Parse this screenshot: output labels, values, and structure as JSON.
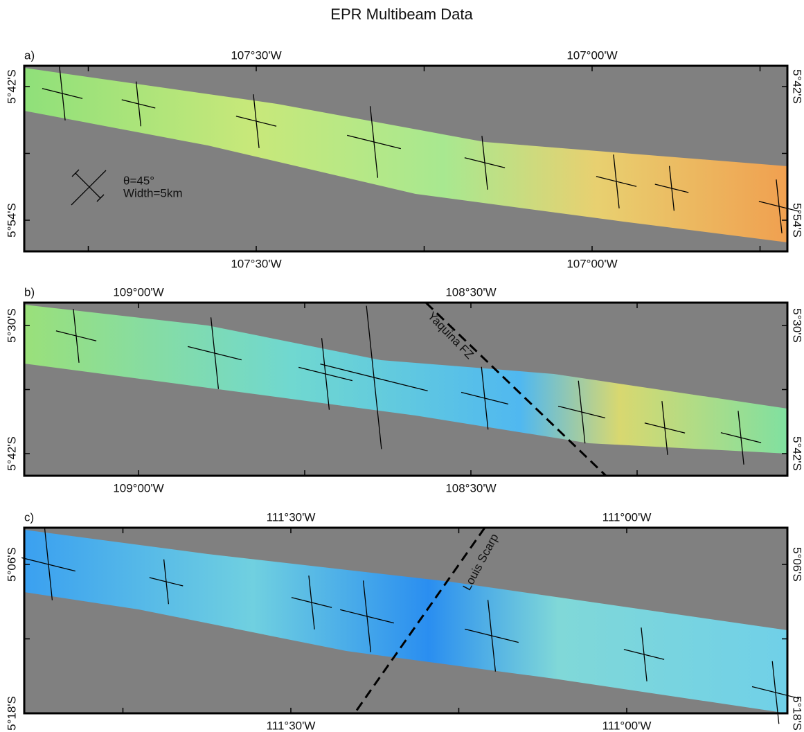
{
  "title": "EPR Multibeam Data",
  "legend": {
    "angle_label": "θ=45°",
    "width_label": "Width=5km"
  },
  "panels": [
    {
      "label": "a)",
      "lon_labels": [
        "107°30'W",
        "107°00'W"
      ],
      "lat_labels": [
        "5°42'S",
        "5°54'S"
      ]
    },
    {
      "label": "b)",
      "lon_labels": [
        "109°00'W",
        "108°30'W"
      ],
      "lat_labels": [
        "5°30'S",
        "5°42'S"
      ],
      "annotation": "Yaquina FZ"
    },
    {
      "label": "c)",
      "lon_labels": [
        "111°30'W",
        "111°00'W"
      ],
      "lat_labels": [
        "5°06'S",
        "5°18'S"
      ],
      "annotation": "Louis Scarp"
    }
  ]
}
